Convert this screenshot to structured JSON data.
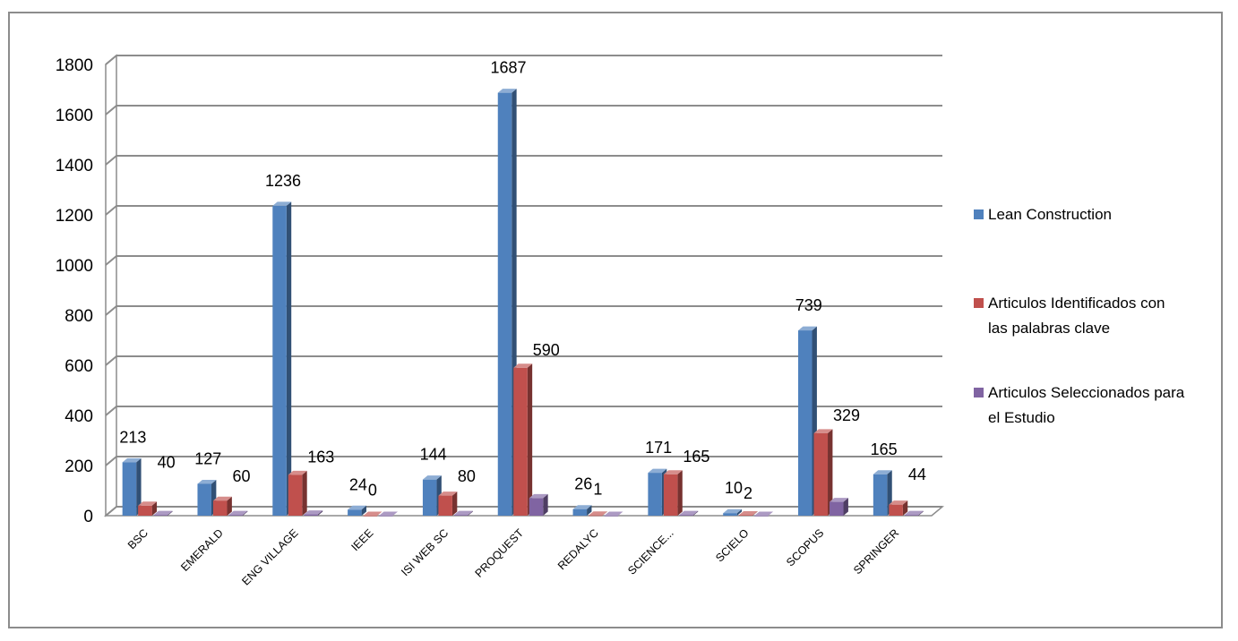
{
  "chart_data": {
    "type": "bar",
    "title": "",
    "xlabel": "",
    "ylabel": "",
    "ylim": [
      0,
      1800
    ],
    "yticks": [
      0,
      200,
      400,
      600,
      800,
      1000,
      1200,
      1400,
      1600,
      1800
    ],
    "grid": true,
    "three_d": true,
    "legend_position": "right",
    "categories": [
      "BSC",
      "EMERALD",
      "ENG VILLAGE",
      "IEEE",
      "ISI WEB SC",
      "PROQUEST",
      "REDALYC",
      "SCIENCE...",
      "SCIELO",
      "SCOPUS",
      "SPRINGER"
    ],
    "series": [
      {
        "name": "Lean Construction",
        "color": "#4F81BD",
        "values": [
          213,
          127,
          1236,
          24,
          144,
          1687,
          26,
          171,
          10,
          739,
          165
        ],
        "labels": [
          "213",
          "127",
          "1236",
          "24",
          "144",
          "1687",
          "26",
          "171",
          "10",
          "739",
          "165"
        ]
      },
      {
        "name": "Articulos Identificados con las palabras clave",
        "color": "#C0504D",
        "values": [
          40,
          60,
          163,
          0,
          80,
          590,
          1,
          165,
          2,
          329,
          44
        ],
        "labels": [
          "40",
          "60",
          "163",
          "0",
          "80",
          "590",
          "1",
          "165",
          "2",
          "329",
          "44"
        ]
      },
      {
        "name": "Articulos Seleccionados para el Estudio",
        "color": "#8064A2",
        "values": [
          3,
          3,
          5,
          0,
          3,
          70,
          0,
          3,
          0,
          55,
          3
        ],
        "labels": []
      }
    ],
    "legend_lines": [
      [
        "Lean Construction"
      ],
      [
        "Articulos Identificados con",
        "las palabras clave"
      ],
      [
        "Articulos Seleccionados para",
        "el Estudio"
      ]
    ]
  }
}
